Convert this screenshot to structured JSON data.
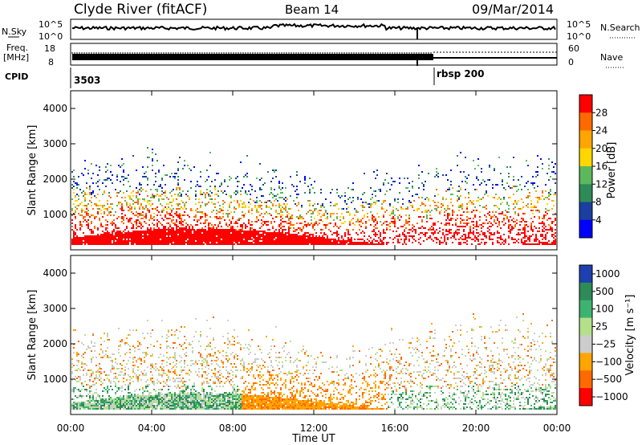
{
  "header": {
    "station": "Clyde River (fitACF)",
    "beam": "Beam 14",
    "date": "09/Mar/2014"
  },
  "panels": {
    "nsky": {
      "label": "N.Sky",
      "tick_top": "10^5",
      "tick_bottom": "10^0",
      "right_label": "N.Search",
      "right_tick_top": "10^5",
      "right_tick_bottom": "10^0"
    },
    "freq": {
      "label_line1": "Freq.",
      "label_line2": "[MHz]",
      "tick_top": "18",
      "tick_bottom": "8",
      "right_label": "Nave",
      "right_tick_top": "60",
      "right_tick_bottom": "0"
    },
    "cpid": {
      "label": "CPID",
      "value_left": "3503",
      "value_right": "rbsp 200"
    }
  },
  "colors": {
    "power": [
      "#0000ff",
      "#1a3f9e",
      "#2e8b57",
      "#5cb85c",
      "#ffd700",
      "#ffa500",
      "#ff6a00",
      "#ff0000"
    ],
    "velocity": [
      "#ff0000",
      "#ff6a00",
      "#ffa500",
      "#cccccc",
      "#b5e08a",
      "#3cb371",
      "#2e8b57",
      "#1e3fb0"
    ]
  },
  "chart_data": [
    {
      "type": "heatmap",
      "ylabel": "Slant Range [km]",
      "yticks": [
        "1000",
        "2000",
        "3000",
        "4000"
      ],
      "ylim": [
        0,
        4500
      ],
      "colorbar_label": "Power [dB]",
      "colorbar_ticks": [
        "4",
        "8",
        "12",
        "16",
        "20",
        "24",
        "28"
      ]
    },
    {
      "type": "heatmap",
      "ylabel": "Slant Range [km]",
      "yticks": [
        "1000",
        "2000",
        "3000",
        "4000"
      ],
      "ylim": [
        0,
        4500
      ],
      "colorbar_label": "Velocity [m s⁻¹]",
      "colorbar_ticks": [
        "1000",
        "500",
        "100",
        "25",
        "−25",
        "−100",
        "−500",
        "−1000"
      ]
    }
  ],
  "xaxis": {
    "label": "Time UT",
    "ticks": [
      "00:00",
      "04:00",
      "08:00",
      "12:00",
      "16:00",
      "20:00",
      "00:00"
    ]
  }
}
